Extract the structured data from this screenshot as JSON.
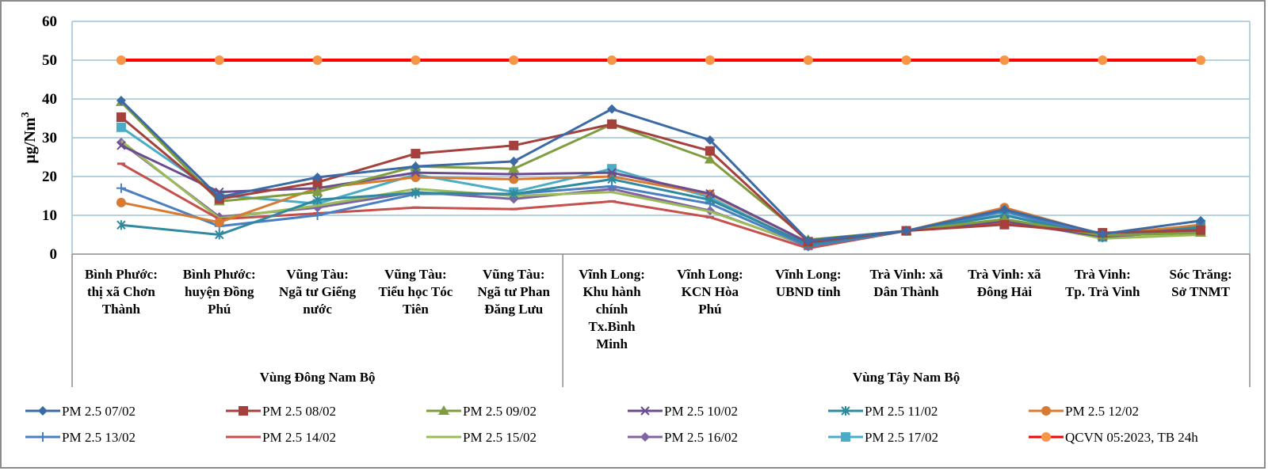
{
  "chart_data": {
    "type": "line",
    "title": "",
    "xlabel": "",
    "ylabel": "µg/Nm",
    "ylabel_superscript": "3",
    "ylim": [
      0,
      60
    ],
    "yticks": [
      0,
      10,
      20,
      30,
      40,
      50,
      60
    ],
    "grid": true,
    "legend_position": "bottom",
    "categories": [
      [
        "Bình Phước:",
        "thị xã Chơn",
        "Thành"
      ],
      [
        "Bình Phước:",
        "huyện Đồng",
        "Phú"
      ],
      [
        "Vũng Tàu:",
        "Ngã tư Giếng",
        "nước"
      ],
      [
        "Vũng Tàu:",
        "Tiểu học Tóc",
        "Tiên"
      ],
      [
        "Vũng Tàu:",
        "Ngã tư Phan",
        "Đăng Lưu"
      ],
      [
        "Vĩnh Long:",
        "Khu hành",
        "chính",
        "Tx.Bình",
        "Minh"
      ],
      [
        "Vĩnh Long:",
        "KCN Hòa",
        "Phú"
      ],
      [
        "Vĩnh Long:",
        "UBND tỉnh"
      ],
      [
        "Trà Vinh: xã",
        "Dân Thành"
      ],
      [
        "Trà Vinh: xã",
        "Đông Hải"
      ],
      [
        "Trà Vinh:",
        "Tp. Trà Vinh"
      ],
      [
        "Sóc Trăng:",
        "Sở TNMT"
      ]
    ],
    "groups": [
      {
        "label": "Vùng Đông Nam Bộ",
        "start": 0,
        "end": 4
      },
      {
        "label": "Vùng Tây Nam Bộ",
        "start": 5,
        "end": 11
      }
    ],
    "series": [
      {
        "name": "PM 2.5 07/02",
        "color": "#3b6aa5",
        "marker": "diamond",
        "values": [
          39.6,
          14.7,
          19.8,
          22.6,
          23.9,
          37.4,
          29.4,
          3.5,
          6.0,
          11.5,
          5.2,
          8.6
        ]
      },
      {
        "name": "PM 2.5 08/02",
        "color": "#a5403c",
        "marker": "square",
        "values": [
          35.3,
          14.2,
          18.5,
          25.9,
          28.0,
          33.5,
          26.6,
          3.2,
          6.0,
          7.6,
          5.5,
          6.2
        ]
      },
      {
        "name": "PM 2.5 09/02",
        "color": "#7f9c3f",
        "marker": "triangle",
        "values": [
          39.2,
          13.6,
          16.0,
          22.6,
          22.0,
          33.5,
          24.4,
          3.7,
          6.0,
          9.0,
          4.8,
          5.5
        ]
      },
      {
        "name": "PM 2.5 10/02",
        "color": "#6a4c8f",
        "marker": "x",
        "values": [
          28.0,
          16.0,
          17.0,
          21.0,
          20.6,
          21.0,
          15.6,
          3.0,
          6.0,
          8.5,
          4.5,
          6.0
        ]
      },
      {
        "name": "PM 2.5 11/02",
        "color": "#2f8aa0",
        "marker": "asterisk",
        "values": [
          7.5,
          5.0,
          14.0,
          15.8,
          15.5,
          19.3,
          14.0,
          2.5,
          6.0,
          10.0,
          4.5,
          7.0
        ]
      },
      {
        "name": "PM 2.5 12/02",
        "color": "#d77b33",
        "marker": "circle",
        "values": [
          13.3,
          8.2,
          17.0,
          19.8,
          19.3,
          20.0,
          15.4,
          3.0,
          6.0,
          12.0,
          5.0,
          7.5
        ]
      },
      {
        "name": "PM 2.5 13/02",
        "color": "#4a7fc1",
        "marker": "plus",
        "values": [
          17.0,
          7.2,
          10.0,
          15.5,
          15.5,
          17.5,
          13.0,
          2.0,
          6.0,
          11.0,
          4.5,
          7.0
        ]
      },
      {
        "name": "PM 2.5 14/02",
        "color": "#c5504d",
        "marker": "dash",
        "values": [
          23.3,
          9.0,
          10.5,
          12.0,
          11.6,
          13.6,
          9.5,
          1.5,
          6.0,
          8.0,
          4.8,
          5.8
        ]
      },
      {
        "name": "PM 2.5 15/02",
        "color": "#9bbb59",
        "marker": "none",
        "values": [
          29.2,
          9.2,
          12.5,
          16.8,
          15.0,
          16.0,
          11.0,
          2.2,
          6.0,
          9.0,
          4.0,
          5.0
        ]
      },
      {
        "name": "PM 2.5 16/02",
        "color": "#8064a2",
        "marker": "diamond",
        "values": [
          28.8,
          9.6,
          12.0,
          16.0,
          14.2,
          16.8,
          11.2,
          2.0,
          6.0,
          8.8,
          4.2,
          6.5
        ]
      },
      {
        "name": "PM 2.5 17/02",
        "color": "#4bacc6",
        "marker": "square",
        "values": [
          32.7,
          15.2,
          13.0,
          20.5,
          16.0,
          22.0,
          14.6,
          2.2,
          6.0,
          10.2,
          4.4,
          7.6
        ]
      },
      {
        "name": "QCVN 05:2023, TB 24h",
        "color": "#ff0000",
        "marker": "circle",
        "marker_color": "#f79646",
        "values": [
          50,
          50,
          50,
          50,
          50,
          50,
          50,
          50,
          50,
          50,
          50,
          50
        ]
      }
    ]
  }
}
